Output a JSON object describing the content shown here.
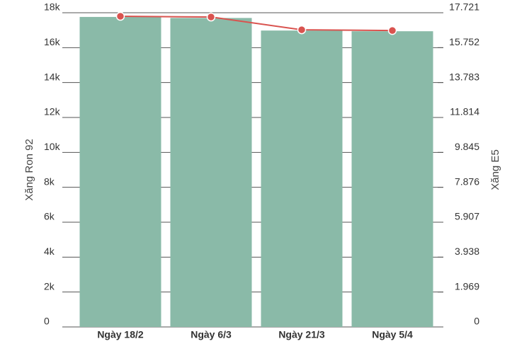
{
  "chart_data": {
    "type": "bar-line",
    "categories": [
      "Ngày 18/2",
      "Ngày 6/3",
      "Ngày 21/3",
      "Ngày 5/4"
    ],
    "y_label": "Xăng Ron 92",
    "y2_label": "Xăng E5",
    "series": [
      {
        "name": "Xăng Ron 92",
        "type": "bar",
        "color": "#8abaa8",
        "values": [
          17760,
          17700,
          16980,
          16940
        ]
      },
      {
        "name": "Xăng E5",
        "type": "line",
        "color": "#d9534f",
        "axis": "y2",
        "values": [
          17520,
          17480,
          16760,
          16720
        ]
      }
    ],
    "ylim": [
      0,
      18000
    ],
    "yticks": [
      0,
      {
        "value": 2000,
        "label": "2k"
      },
      {
        "value": 4000,
        "label": "4k"
      },
      {
        "value": 6000,
        "label": "6k"
      },
      {
        "value": 8000,
        "label": "8k"
      },
      {
        "value": 10000,
        "label": "10k"
      },
      {
        "value": 12000,
        "label": "12k"
      },
      {
        "value": 14000,
        "label": "14k"
      },
      {
        "value": 16000,
        "label": "16k"
      },
      {
        "value": 18000,
        "label": "18k"
      }
    ],
    "y2lim": [
      0,
      17721
    ],
    "y2ticks": [
      0,
      {
        "value": 1969,
        "label": "1.969"
      },
      {
        "value": 3938,
        "label": "3.938"
      },
      {
        "value": 5907,
        "label": "5.907"
      },
      {
        "value": 7876,
        "label": "7.876"
      },
      {
        "value": 9845,
        "label": "9.845"
      },
      {
        "value": 11814,
        "label": "11.814"
      },
      {
        "value": 13783,
        "label": "13.783"
      },
      {
        "value": 15752,
        "label": "15.752"
      },
      {
        "value": 17721,
        "label": "17.721"
      }
    ],
    "grid": true
  }
}
